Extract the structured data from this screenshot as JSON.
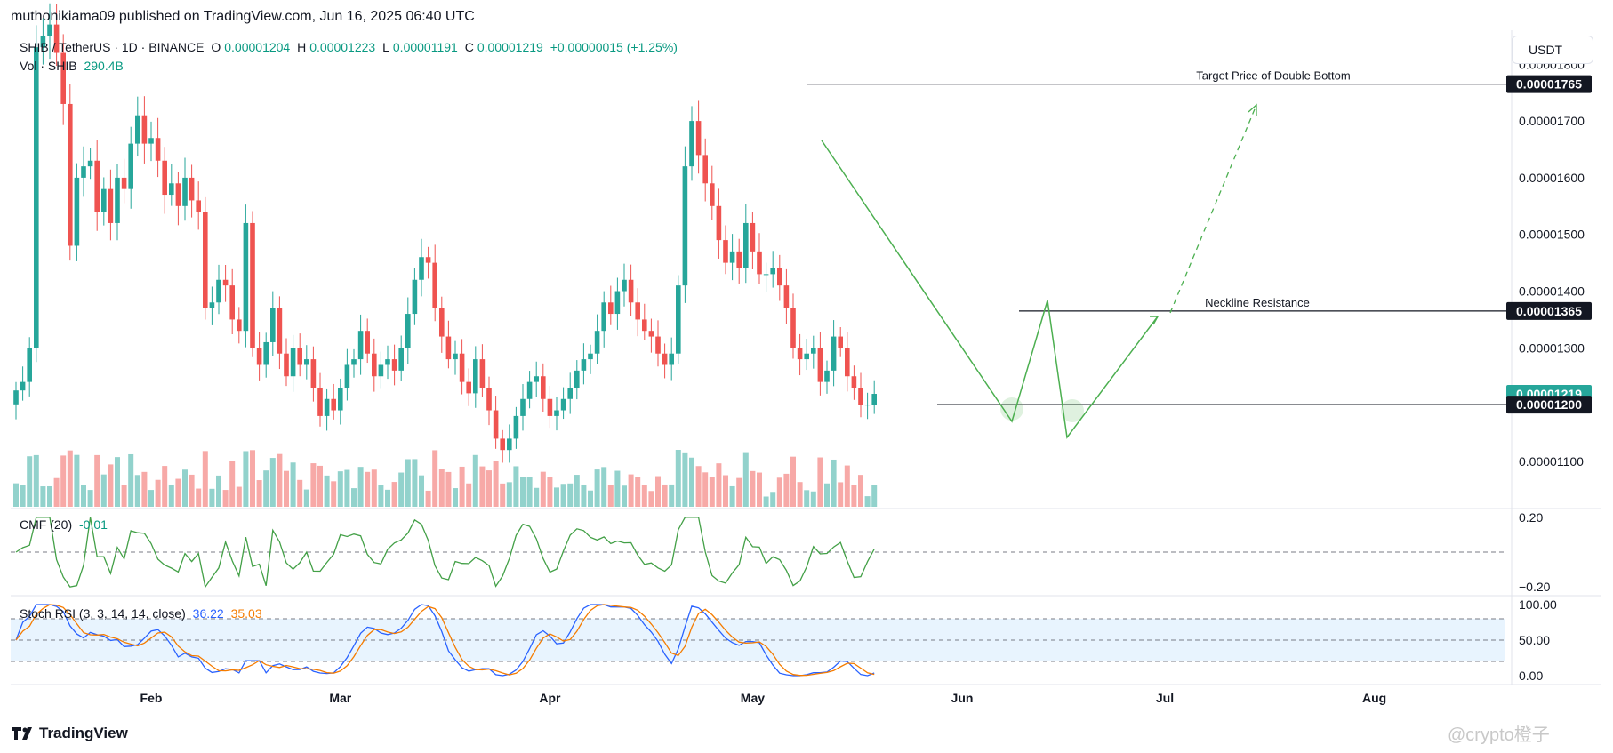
{
  "header": {
    "published": "muthonikiama09 published on TradingView.com, Jun 16, 2025 06:40 UTC"
  },
  "legend": {
    "symbol": "SHIB / TetherUS · 1D · BINANCE",
    "o_label": "O",
    "o": "0.00001204",
    "h_label": "H",
    "h": "0.00001223",
    "l_label": "L",
    "l": "0.00001191",
    "c_label": "C",
    "c": "0.00001219",
    "change": "+0.00000015 (+1.25%)",
    "vol_label": "Vol · SHIB",
    "vol": "290.4B"
  },
  "currency_button": "USDT",
  "brand": "TradingView",
  "watermark": "@crypto橙子",
  "chart_data": {
    "type": "candlestick",
    "price_axis": {
      "ticks": [
        "0.00001800",
        "0.00001700",
        "0.00001600",
        "0.00001500",
        "0.00001400",
        "0.00001300",
        "0.00001100"
      ],
      "range": [
        1.02e-05,
        1.86e-05
      ],
      "badges": [
        {
          "label": "0.00001765",
          "kind": "line"
        },
        {
          "label": "0.00001365",
          "kind": "line"
        },
        {
          "label": "0.00001219",
          "kind": "current",
          "color": "#26a69a"
        },
        {
          "label": "0.00001200",
          "kind": "line"
        }
      ]
    },
    "time_axis": [
      "Feb",
      "Mar",
      "Apr",
      "May",
      "Jun",
      "Jul",
      "Aug"
    ],
    "annotations": [
      {
        "text": "Target Price of Double Bottom",
        "price": 1.765e-05
      },
      {
        "text": "Neckline Resistance",
        "price": 1.365e-05
      },
      {
        "text": "",
        "price": 1.2e-05
      }
    ],
    "colors": {
      "up": "#26a69a",
      "down": "#ef5350",
      "pattern": "#4caf50",
      "stoch_k": "#2962ff",
      "stoch_d": "#f57c00"
    },
    "closes": [
      1.225e-05,
      1.24e-05,
      1.3e-05,
      1.83e-05,
      1.85e-05,
      1.87e-05,
      1.82e-05,
      1.73e-05,
      1.48e-05,
      1.6e-05,
      1.62e-05,
      1.63e-05,
      1.54e-05,
      1.58e-05,
      1.52e-05,
      1.6e-05,
      1.58e-05,
      1.66e-05,
      1.71e-05,
      1.66e-05,
      1.67e-05,
      1.63e-05,
      1.57e-05,
      1.59e-05,
      1.55e-05,
      1.6e-05,
      1.56e-05,
      1.54e-05,
      1.37e-05,
      1.38e-05,
      1.42e-05,
      1.41e-05,
      1.35e-05,
      1.33e-05,
      1.52e-05,
      1.3e-05,
      1.27e-05,
      1.31e-05,
      1.37e-05,
      1.29e-05,
      1.25e-05,
      1.3e-05,
      1.27e-05,
      1.28e-05,
      1.23e-05,
      1.18e-05,
      1.21e-05,
      1.19e-05,
      1.23e-05,
      1.27e-05,
      1.28e-05,
      1.33e-05,
      1.29e-05,
      1.25e-05,
      1.27e-05,
      1.28e-05,
      1.26e-05,
      1.3e-05,
      1.36e-05,
      1.42e-05,
      1.46e-05,
      1.45e-05,
      1.37e-05,
      1.32e-05,
      1.28e-05,
      1.29e-05,
      1.24e-05,
      1.22e-05,
      1.28e-05,
      1.23e-05,
      1.19e-05,
      1.14e-05,
      1.12e-05,
      1.14e-05,
      1.18e-05,
      1.21e-05,
      1.24e-05,
      1.25e-05,
      1.21e-05,
      1.18e-05,
      1.19e-05,
      1.21e-05,
      1.23e-05,
      1.26e-05,
      1.28e-05,
      1.29e-05,
      1.33e-05,
      1.38e-05,
      1.36e-05,
      1.4e-05,
      1.42e-05,
      1.38e-05,
      1.35e-05,
      1.33e-05,
      1.32e-05,
      1.29e-05,
      1.27e-05,
      1.29e-05,
      1.41e-05,
      1.62e-05,
      1.7e-05,
      1.64e-05,
      1.59e-05,
      1.55e-05,
      1.49e-05,
      1.45e-05,
      1.47e-05,
      1.44e-05,
      1.52e-05,
      1.47e-05,
      1.43e-05,
      1.43e-05,
      1.44e-05,
      1.41e-05,
      1.37e-05,
      1.3e-05,
      1.28e-05,
      1.29e-05,
      1.3e-05,
      1.24e-05,
      1.26e-05,
      1.32e-05,
      1.3e-05,
      1.25e-05,
      1.23e-05,
      1.2e-05,
      1.2e-05,
      1.219e-05
    ],
    "volume_label": "Vol · SHIB",
    "cmf": {
      "label": "CMF (20)",
      "value": "-0.01",
      "ticks": [
        "0.20",
        "−0.20"
      ],
      "range": [
        -0.22,
        0.22
      ]
    },
    "stoch_rsi": {
      "label": "Stoch RSI (3, 3, 14, 14, close)",
      "k": "36.22",
      "d": "35.03",
      "ticks": [
        "100.00",
        "50.00",
        "0.00"
      ],
      "bands": [
        20,
        80
      ]
    }
  }
}
